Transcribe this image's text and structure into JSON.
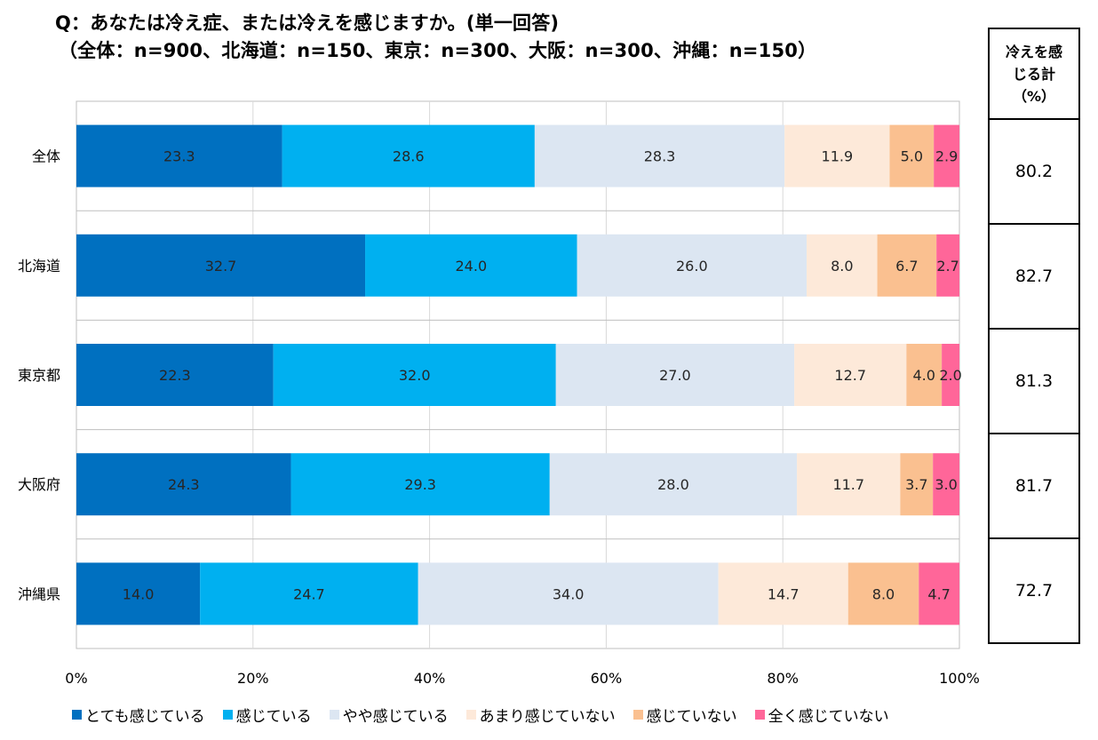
{
  "title": "Q：あなたは冷え症、または冷えを感じますか。(単一回答)",
  "subtitle": "（全体：n=900、北海道：n=150、東京：n=300、大阪：n=300、沖縄：n=150）",
  "table": {
    "header_lines": [
      "冷えを感",
      "じる計",
      "（%）"
    ],
    "values": [
      "80.2",
      "82.7",
      "81.3",
      "81.7",
      "72.7"
    ]
  },
  "chart_data": {
    "type": "bar",
    "orientation": "horizontal",
    "stacked": true,
    "categories": [
      "全体",
      "北海道",
      "東京都",
      "大阪府",
      "沖縄県"
    ],
    "series": [
      {
        "name": "とても感じている",
        "color": "#0070c0",
        "values": [
          23.3,
          32.7,
          22.3,
          24.3,
          14.0
        ]
      },
      {
        "name": "感じている",
        "color": "#00b0f0",
        "values": [
          28.6,
          24.0,
          32.0,
          29.3,
          24.7
        ]
      },
      {
        "name": "やや感じている",
        "color": "#dce6f2",
        "values": [
          28.3,
          26.0,
          27.0,
          28.0,
          34.0
        ]
      },
      {
        "name": "あまり感じていない",
        "color": "#fde9d9",
        "values": [
          11.9,
          8.0,
          12.7,
          11.7,
          14.7
        ]
      },
      {
        "name": "感じていない",
        "color": "#fac090",
        "values": [
          5.0,
          6.7,
          4.0,
          3.7,
          8.0
        ]
      },
      {
        "name": "全く感じていない",
        "color": "#ff6699",
        "values": [
          2.9,
          2.7,
          2.0,
          3.0,
          4.7
        ]
      }
    ],
    "data_labels": [
      [
        "23.3",
        "28.6",
        "28.3",
        "11.9",
        "5.0",
        "2.9"
      ],
      [
        "32.7",
        "24.0",
        "26.0",
        "8.0",
        "6.7",
        "2.7"
      ],
      [
        "22.3",
        "32.0",
        "27.0",
        "12.7",
        "4.0",
        "2.0"
      ],
      [
        "24.3",
        "29.3",
        "28.0",
        "11.7",
        "3.7",
        "3.0"
      ],
      [
        "14.0",
        "24.7",
        "34.0",
        "14.7",
        "8.0",
        "4.7"
      ]
    ],
    "xlim": [
      0,
      100
    ],
    "xticks": [
      "0%",
      "20%",
      "40%",
      "60%",
      "80%",
      "100%"
    ],
    "grid": true,
    "legend_position": "bottom"
  }
}
